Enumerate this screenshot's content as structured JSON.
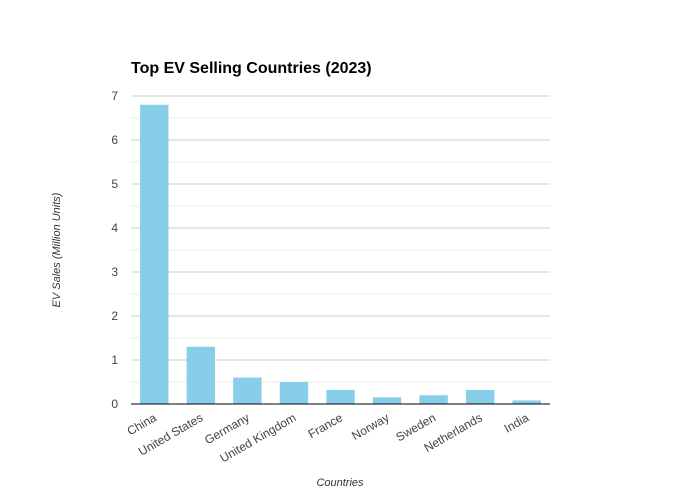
{
  "chart_data": {
    "type": "bar",
    "title": "Top EV Selling Countries (2023)",
    "xlabel": "Countries",
    "ylabel": "EV Sales (Million Units)",
    "categories": [
      "China",
      "United States",
      "Germany",
      "United Kingdom",
      "France",
      "Norway",
      "Sweden",
      "Netherlands",
      "India"
    ],
    "values": [
      6.8,
      1.3,
      0.6,
      0.5,
      0.32,
      0.15,
      0.2,
      0.32,
      0.08
    ],
    "ylim": [
      0,
      7
    ],
    "yticks": [
      "0",
      "1",
      "2",
      "3",
      "4",
      "5",
      "6",
      "7"
    ],
    "grid": true,
    "minor_grid": true,
    "bar_color": "#87CEEB"
  }
}
